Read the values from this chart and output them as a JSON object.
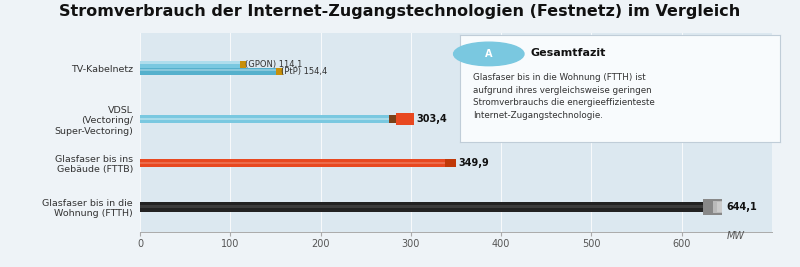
{
  "title": "Stromverbrauch der Internet-Zugangstechnologien (Festnetz) im Vergleich",
  "title_fontsize": 11.5,
  "background_color": "#eef3f7",
  "plot_bg_color": "#dce8f0",
  "categories": [
    "Glasfaser bis in die\nWohnung (FTTH)",
    "Glasfaser bis ins\nGebäude (FTTB)",
    "VDSL\n(Vectoring/\nSuper-Vectoring)",
    "TV-Kabelnetz"
  ],
  "gpon_val": 114.1,
  "pip_val": 154.4,
  "fttb_val": 303.4,
  "vdsl_val": 349.9,
  "cable_val": 644.1,
  "xmax": 700,
  "xticks": [
    0,
    100,
    200,
    300,
    400,
    500,
    600
  ],
  "annotation_title": "Gesamtfazit",
  "annotation_text": "Glasfaser bis in die Wohnung (FTTH) ist\naufgrund ihres vergleichsweise geringen\nStromverbrauchs die energieeffizienteste\nInternet-Zugangstechnologie.",
  "color_blue_light": "#7ac8e0",
  "color_blue_mid": "#55b0cc",
  "color_orange_red": "#e84820",
  "color_dark_red": "#c03808",
  "color_brown": "#7a4018",
  "color_black": "#1a1a1a",
  "color_gray_end": "#aaaaaa",
  "color_gold": "#c8900a"
}
